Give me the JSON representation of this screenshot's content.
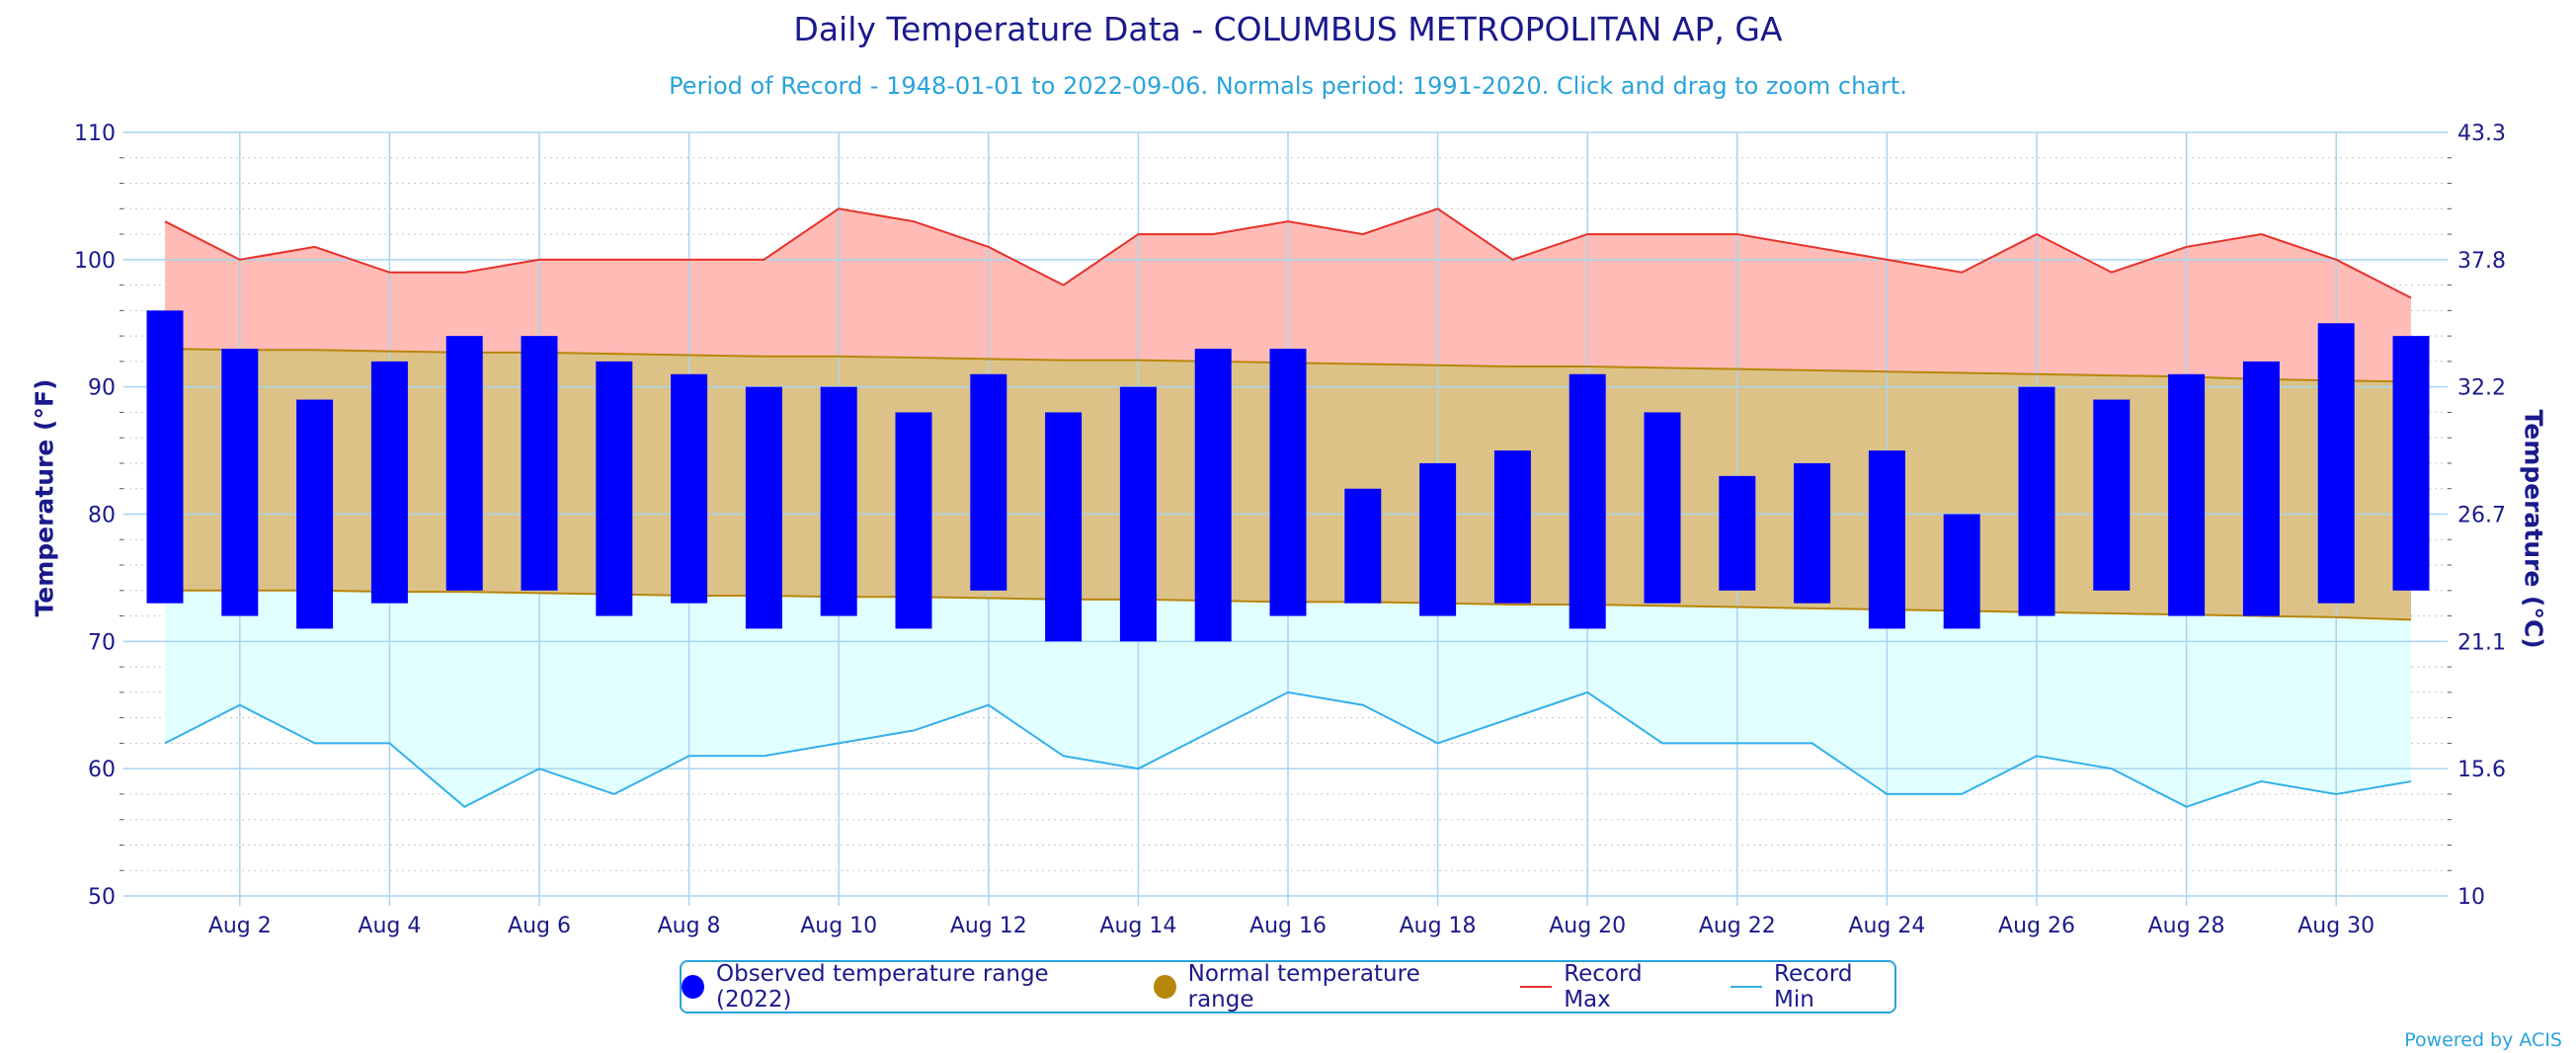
{
  "title": "Daily Temperature Data - COLUMBUS METROPOLITAN AP, GA",
  "subtitle": "Period of Record - 1948-01-01 to 2022-09-06. Normals period: 1991-2020. Click and drag to zoom chart.",
  "credit": "Powered by ACIS",
  "legend": {
    "observed": "Observed temperature range (2022)",
    "normal": "Normal temperature range",
    "record_max": "Record Max",
    "record_min": "Record Min"
  },
  "colors": {
    "observed": "#0000ff",
    "normal": "#b8860b",
    "normal_fill": "#dcc287",
    "record_max_line": "#e8302a",
    "record_max_fill": "#ffbcb6",
    "record_min_line": "#33b0ea",
    "record_min_fill": "#e2ffff",
    "axis_text": "#1a1a8c",
    "grid": "#a8d4f0"
  },
  "chart_data": {
    "type": "bar",
    "xlabel": "",
    "ylabel": "Temperature (°F)",
    "ylabel_right": "Temperature (°C)",
    "ylim": [
      50,
      110
    ],
    "y_ticks": [
      "50",
      "60",
      "70",
      "80",
      "90",
      "100",
      "110"
    ],
    "y_ticks_right": [
      "10",
      "15.6",
      "21.1",
      "26.7",
      "32.2",
      "37.8",
      "43.3"
    ],
    "x": [
      1,
      2,
      3,
      4,
      5,
      6,
      7,
      8,
      9,
      10,
      11,
      12,
      13,
      14,
      15,
      16,
      17,
      18,
      19,
      20,
      21,
      22,
      23,
      24,
      25,
      26,
      27,
      28,
      29,
      30,
      31
    ],
    "x_tick_labels": [
      {
        "day": 2,
        "label": "Aug 2"
      },
      {
        "day": 4,
        "label": "Aug 4"
      },
      {
        "day": 6,
        "label": "Aug 6"
      },
      {
        "day": 8,
        "label": "Aug 8"
      },
      {
        "day": 10,
        "label": "Aug 10"
      },
      {
        "day": 12,
        "label": "Aug 12"
      },
      {
        "day": 14,
        "label": "Aug 14"
      },
      {
        "day": 16,
        "label": "Aug 16"
      },
      {
        "day": 18,
        "label": "Aug 18"
      },
      {
        "day": 20,
        "label": "Aug 20"
      },
      {
        "day": 22,
        "label": "Aug 22"
      },
      {
        "day": 24,
        "label": "Aug 24"
      },
      {
        "day": 26,
        "label": "Aug 26"
      },
      {
        "day": 28,
        "label": "Aug 28"
      },
      {
        "day": 30,
        "label": "Aug 30"
      }
    ],
    "series": [
      {
        "name": "Observed temperature range (2022)",
        "low": [
          73,
          72,
          71,
          73,
          74,
          74,
          72,
          73,
          71,
          72,
          71,
          74,
          70,
          70,
          70,
          72,
          73,
          72,
          73,
          71,
          73,
          74,
          73,
          71,
          71,
          72,
          74,
          72,
          72,
          73,
          74
        ],
        "high": [
          96,
          93,
          89,
          92,
          94,
          94,
          92,
          91,
          90,
          90,
          88,
          91,
          88,
          90,
          93,
          93,
          82,
          84,
          85,
          91,
          88,
          83,
          84,
          85,
          80,
          90,
          89,
          91,
          92,
          95,
          94
        ]
      },
      {
        "name": "Normal temperature range",
        "low": [
          74,
          74,
          74,
          73.9,
          73.9,
          73.8,
          73.7,
          73.6,
          73.6,
          73.5,
          73.5,
          73.4,
          73.3,
          73.3,
          73.2,
          73.1,
          73.1,
          73.0,
          72.9,
          72.9,
          72.8,
          72.7,
          72.6,
          72.5,
          72.4,
          72.3,
          72.2,
          72.1,
          72.0,
          71.9,
          71.7
        ],
        "high": [
          93,
          92.9,
          92.9,
          92.8,
          92.7,
          92.7,
          92.6,
          92.5,
          92.4,
          92.4,
          92.3,
          92.2,
          92.1,
          92.1,
          92.0,
          91.9,
          91.8,
          91.7,
          91.6,
          91.6,
          91.5,
          91.4,
          91.3,
          91.2,
          91.1,
          91.0,
          90.9,
          90.8,
          90.6,
          90.5,
          90.4
        ]
      },
      {
        "name": "Record Max",
        "values": [
          103,
          100,
          101,
          99,
          99,
          100,
          100,
          100,
          100,
          104,
          103,
          101,
          98,
          102,
          102,
          103,
          102,
          104,
          100,
          102,
          102,
          102,
          101,
          100,
          99,
          102,
          99,
          101,
          102,
          100,
          97
        ]
      },
      {
        "name": "Record Min",
        "values": [
          62,
          65,
          62,
          62,
          57,
          60,
          58,
          61,
          61,
          62,
          63,
          65,
          61,
          60,
          63,
          66,
          65,
          62,
          64,
          66,
          62,
          62,
          62,
          58,
          58,
          61,
          60,
          57,
          59,
          58,
          59
        ]
      }
    ]
  }
}
